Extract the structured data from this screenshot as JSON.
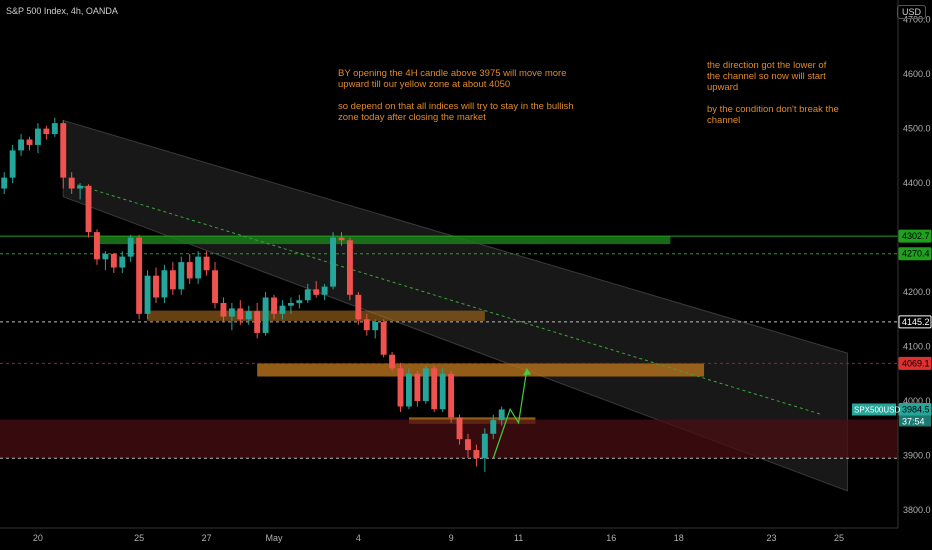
{
  "header": {
    "symbol_title": "S&P 500 Index, 4h, OANDA",
    "currency": "USD"
  },
  "annotations": {
    "note_left": "BY opening the 4H candle above 3975 will move more\nupward till our yellow zone at about 4050\n\nso depend on that all indices will try to stay in the bullish\nzone today after closing the market",
    "note_right": "the direction got the lower of\nthe channel so now will start\nupward\n\nby the condition don't break the\nchannel"
  },
  "colors": {
    "background": "#000000",
    "bull": "#26a69a",
    "bear": "#ef5350",
    "annotation_text": "#e08a2c",
    "green_zone": "#1b7a1b",
    "orange_zone": "#b8741e",
    "red_zone": "#4a0f12",
    "channel_fill": "#1c1c1c"
  },
  "chart_data": {
    "type": "candlestick",
    "timeframe": "4h",
    "y_ticks": [
      3800,
      3900,
      4000,
      4100,
      4200,
      4300,
      4400,
      4500,
      4600,
      4700
    ],
    "y_tick_labels": [
      "3800.0",
      "3900.0",
      "4000.0",
      "4100.0",
      "4200.0",
      "4300.0",
      "4400.0",
      "4500.0",
      "4600.0",
      "4700.0"
    ],
    "ylim": [
      3767,
      4736
    ],
    "x_ticks": [
      {
        "label": "20",
        "bar": 4
      },
      {
        "label": "25",
        "bar": 16
      },
      {
        "label": "27",
        "bar": 24
      },
      {
        "label": "May",
        "bar": 32
      },
      {
        "label": "4",
        "bar": 42
      },
      {
        "label": "9",
        "bar": 53
      },
      {
        "label": "11",
        "bar": 61
      },
      {
        "label": "16",
        "bar": 72
      },
      {
        "label": "18",
        "bar": 80
      },
      {
        "label": "23",
        "bar": 91
      },
      {
        "label": "25",
        "bar": 99
      }
    ],
    "xlim_bars": [
      -0.5,
      106
    ],
    "price_labels": [
      {
        "value": 4302.7,
        "text": "4302.7",
        "color": "#1fa01f"
      },
      {
        "value": 4270.4,
        "text": "4270.4",
        "color": "#1fa01f"
      },
      {
        "value": 4145.2,
        "text": "4145.2",
        "color": "#ffffff"
      },
      {
        "value": 4069.1,
        "text": "4069.1",
        "color": "#e03030"
      },
      {
        "value": 3984.5,
        "text": "3984.5",
        "color": "#26a69a"
      }
    ],
    "current_symbol": "SPX500USD",
    "countdown": "37:54",
    "candles": [
      [
        4390,
        4420,
        4380,
        4410
      ],
      [
        4410,
        4470,
        4400,
        4460
      ],
      [
        4460,
        4490,
        4450,
        4480
      ],
      [
        4480,
        4485,
        4460,
        4470
      ],
      [
        4470,
        4510,
        4455,
        4500
      ],
      [
        4500,
        4505,
        4480,
        4490
      ],
      [
        4490,
        4520,
        4485,
        4510
      ],
      [
        4510,
        4515,
        4390,
        4410
      ],
      [
        4410,
        4420,
        4380,
        4390
      ],
      [
        4390,
        4400,
        4370,
        4395
      ],
      [
        4395,
        4398,
        4300,
        4310
      ],
      [
        4310,
        4315,
        4250,
        4260
      ],
      [
        4260,
        4275,
        4240,
        4270
      ],
      [
        4270,
        4272,
        4235,
        4245
      ],
      [
        4245,
        4275,
        4235,
        4265
      ],
      [
        4265,
        4305,
        4255,
        4300
      ],
      [
        4300,
        4305,
        4150,
        4160
      ],
      [
        4160,
        4240,
        4150,
        4230
      ],
      [
        4230,
        4245,
        4180,
        4190
      ],
      [
        4190,
        4250,
        4180,
        4240
      ],
      [
        4240,
        4255,
        4195,
        4205
      ],
      [
        4205,
        4265,
        4195,
        4255
      ],
      [
        4255,
        4270,
        4215,
        4225
      ],
      [
        4225,
        4275,
        4215,
        4265
      ],
      [
        4265,
        4275,
        4230,
        4240
      ],
      [
        4240,
        4255,
        4170,
        4180
      ],
      [
        4180,
        4190,
        4145,
        4155
      ],
      [
        4155,
        4180,
        4130,
        4170
      ],
      [
        4170,
        4185,
        4140,
        4150
      ],
      [
        4150,
        4175,
        4140,
        4165
      ],
      [
        4165,
        4180,
        4115,
        4125
      ],
      [
        4125,
        4200,
        4120,
        4190
      ],
      [
        4190,
        4195,
        4150,
        4160
      ],
      [
        4160,
        4185,
        4150,
        4175
      ],
      [
        4175,
        4190,
        4160,
        4180
      ],
      [
        4180,
        4195,
        4170,
        4185
      ],
      [
        4185,
        4215,
        4180,
        4205
      ],
      [
        4205,
        4220,
        4190,
        4195
      ],
      [
        4195,
        4215,
        4185,
        4210
      ],
      [
        4210,
        4310,
        4205,
        4300
      ],
      [
        4300,
        4310,
        4285,
        4295
      ],
      [
        4295,
        4300,
        4185,
        4195
      ],
      [
        4195,
        4200,
        4140,
        4150
      ],
      [
        4150,
        4160,
        4120,
        4130
      ],
      [
        4130,
        4150,
        4115,
        4145
      ],
      [
        4145,
        4150,
        4080,
        4085
      ],
      [
        4085,
        4090,
        4055,
        4060
      ],
      [
        4060,
        4070,
        3980,
        3990
      ],
      [
        3990,
        4060,
        3985,
        4050
      ],
      [
        4050,
        4055,
        3990,
        4000
      ],
      [
        4000,
        4065,
        3995,
        4060
      ],
      [
        4060,
        4065,
        3980,
        3985
      ],
      [
        3985,
        4060,
        3980,
        4050
      ],
      [
        4050,
        4055,
        3960,
        3970
      ],
      [
        3970,
        3975,
        3920,
        3930
      ],
      [
        3930,
        3940,
        3895,
        3910
      ],
      [
        3910,
        3920,
        3880,
        3895
      ],
      [
        3895,
        3950,
        3870,
        3940
      ],
      [
        3940,
        3975,
        3930,
        3965
      ],
      [
        3965,
        3990,
        3955,
        3984.5
      ]
    ],
    "channel": {
      "upper": [
        [
          7,
          4515
        ],
        [
          100,
          4088
        ]
      ],
      "lower": [
        [
          7,
          4375
        ],
        [
          100,
          3835
        ]
      ]
    },
    "midline": [
      [
        8,
        4400
      ],
      [
        97,
        3975
      ]
    ],
    "zones": [
      {
        "kind": "green_resistance",
        "bar_start": 11,
        "bar_end": 79,
        "y_low": 4288,
        "y_high": 4303
      },
      {
        "kind": "orange_supply",
        "bar_start": 17,
        "bar_end": 57,
        "y_low": 4147,
        "y_high": 4166
      },
      {
        "kind": "orange_target",
        "bar_start": 30,
        "bar_end": 83,
        "y_low": 4045,
        "y_high": 4069
      },
      {
        "kind": "orange_entry",
        "bar_start": 48,
        "bar_end": 63,
        "y_low": 3958,
        "y_high": 3970
      },
      {
        "kind": "red_demand",
        "bar_start": -0.5,
        "bar_end": 106,
        "y_low": 3895,
        "y_high": 3966
      }
    ],
    "hlines": [
      {
        "value": 4302.7,
        "style": "solid",
        "color": "#1fa01f"
      },
      {
        "value": 4270.4,
        "style": "dashed",
        "color": "#1fa01f"
      },
      {
        "value": 4145.2,
        "style": "dashed",
        "color": "#bbbbbb"
      },
      {
        "value": 4069.1,
        "style": "dashed",
        "color": "#a02020"
      },
      {
        "value": 3895,
        "style": "dashed",
        "color": "#bbbbbb"
      }
    ],
    "projection": [
      [
        58,
        3895
      ],
      [
        60,
        3985
      ],
      [
        61,
        3960
      ],
      [
        62,
        4060
      ]
    ]
  }
}
